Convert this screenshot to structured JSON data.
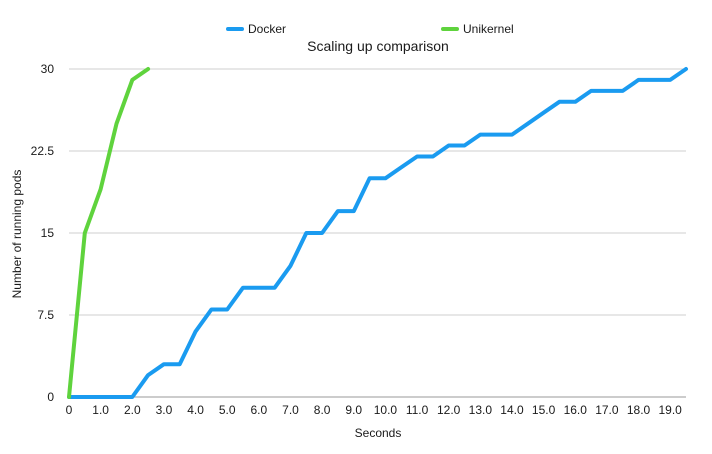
{
  "chart_data": {
    "type": "line",
    "title": "Scaling up comparison",
    "xlabel": "Seconds",
    "ylabel": "Number of running pods",
    "xlim": [
      0,
      19.5
    ],
    "ylim": [
      0,
      30
    ],
    "x_ticks": [
      {
        "value": 0,
        "label": "0"
      },
      {
        "value": 1,
        "label": "1.0"
      },
      {
        "value": 2,
        "label": "2.0"
      },
      {
        "value": 3,
        "label": "3.0"
      },
      {
        "value": 4,
        "label": "4.0"
      },
      {
        "value": 5,
        "label": "5.0"
      },
      {
        "value": 6,
        "label": "6.0"
      },
      {
        "value": 7,
        "label": "7.0"
      },
      {
        "value": 8,
        "label": "8.0"
      },
      {
        "value": 9,
        "label": "9.0"
      },
      {
        "value": 10,
        "label": "10.0"
      },
      {
        "value": 11,
        "label": "11.0"
      },
      {
        "value": 12,
        "label": "12.0"
      },
      {
        "value": 13,
        "label": "13.0"
      },
      {
        "value": 14,
        "label": "14.0"
      },
      {
        "value": 15,
        "label": "15.0"
      },
      {
        "value": 16,
        "label": "16.0"
      },
      {
        "value": 17,
        "label": "17.0"
      },
      {
        "value": 18,
        "label": "18.0"
      },
      {
        "value": 19,
        "label": "19.0"
      }
    ],
    "y_ticks": [
      {
        "value": 0,
        "label": "0"
      },
      {
        "value": 7.5,
        "label": "7.5"
      },
      {
        "value": 15,
        "label": "15"
      },
      {
        "value": 22.5,
        "label": "22.5"
      },
      {
        "value": 30,
        "label": "30"
      }
    ],
    "grid": true,
    "legend_position": "top",
    "series": [
      {
        "name": "Docker",
        "color": "#1a9bf0",
        "points": [
          [
            0,
            0
          ],
          [
            0.5,
            0
          ],
          [
            1,
            0
          ],
          [
            1.5,
            0
          ],
          [
            2,
            0
          ],
          [
            2.5,
            2
          ],
          [
            3,
            3
          ],
          [
            3.5,
            3
          ],
          [
            4,
            6
          ],
          [
            4.5,
            8
          ],
          [
            5,
            8
          ],
          [
            5.5,
            10
          ],
          [
            6,
            10
          ],
          [
            6.5,
            10
          ],
          [
            7,
            12
          ],
          [
            7.5,
            15
          ],
          [
            8,
            15
          ],
          [
            8.5,
            17
          ],
          [
            9,
            17
          ],
          [
            9.5,
            20
          ],
          [
            10,
            20
          ],
          [
            10.5,
            21
          ],
          [
            11,
            22
          ],
          [
            11.5,
            22
          ],
          [
            12,
            23
          ],
          [
            12.5,
            23
          ],
          [
            13,
            24
          ],
          [
            13.5,
            24
          ],
          [
            14,
            24
          ],
          [
            14.5,
            25
          ],
          [
            15,
            26
          ],
          [
            15.5,
            27
          ],
          [
            16,
            27
          ],
          [
            16.5,
            28
          ],
          [
            17,
            28
          ],
          [
            17.5,
            28
          ],
          [
            18,
            29
          ],
          [
            18.5,
            29
          ],
          [
            19,
            29
          ],
          [
            19.5,
            30
          ]
        ]
      },
      {
        "name": "Unikernel",
        "color": "#5fd33d",
        "points": [
          [
            0,
            0
          ],
          [
            0.5,
            15
          ],
          [
            1,
            19
          ],
          [
            1.5,
            25
          ],
          [
            2,
            29
          ],
          [
            2.5,
            30
          ]
        ]
      }
    ]
  }
}
